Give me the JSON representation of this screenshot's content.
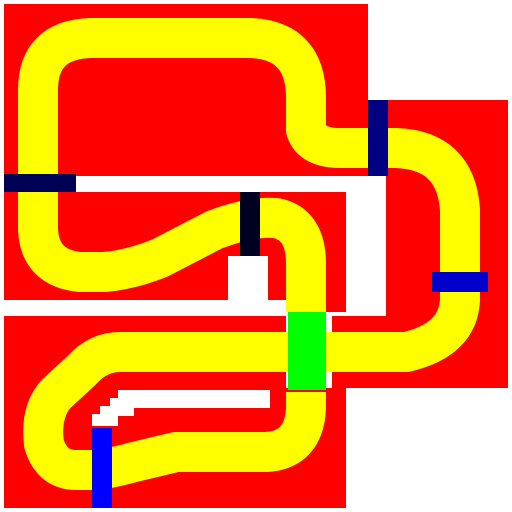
{
  "game": {
    "colors": {
      "background": "#ffffff",
      "block": "#ff0000",
      "track": "#ffff00",
      "gate_dark": "#000055",
      "gate_navy": "#000080",
      "gate_black": "#000022",
      "gate_blue": "#0000ff",
      "gate_blue_alt": "#0000cc",
      "goal": "#00ff00"
    },
    "blocks": [
      {
        "name": "block-top-left",
        "color": "block"
      },
      {
        "name": "block-middle-left",
        "color": "block"
      },
      {
        "name": "block-right",
        "color": "block"
      },
      {
        "name": "block-bottom-left",
        "color": "block"
      },
      {
        "name": "block-bottom-center",
        "color": "block"
      }
    ],
    "gates": [
      {
        "name": "gate-left-navy",
        "color": "gate_dark"
      },
      {
        "name": "gate-center-black",
        "color": "gate_black"
      },
      {
        "name": "gate-top-right-navy",
        "color": "gate_navy"
      },
      {
        "name": "gate-right-blue",
        "color": "gate_blue_alt"
      },
      {
        "name": "gate-bottom-blue",
        "color": "gate_blue"
      }
    ],
    "goal": {
      "name": "goal-tile",
      "color": "goal"
    },
    "track": {
      "name": "track-path",
      "color": "track"
    }
  }
}
